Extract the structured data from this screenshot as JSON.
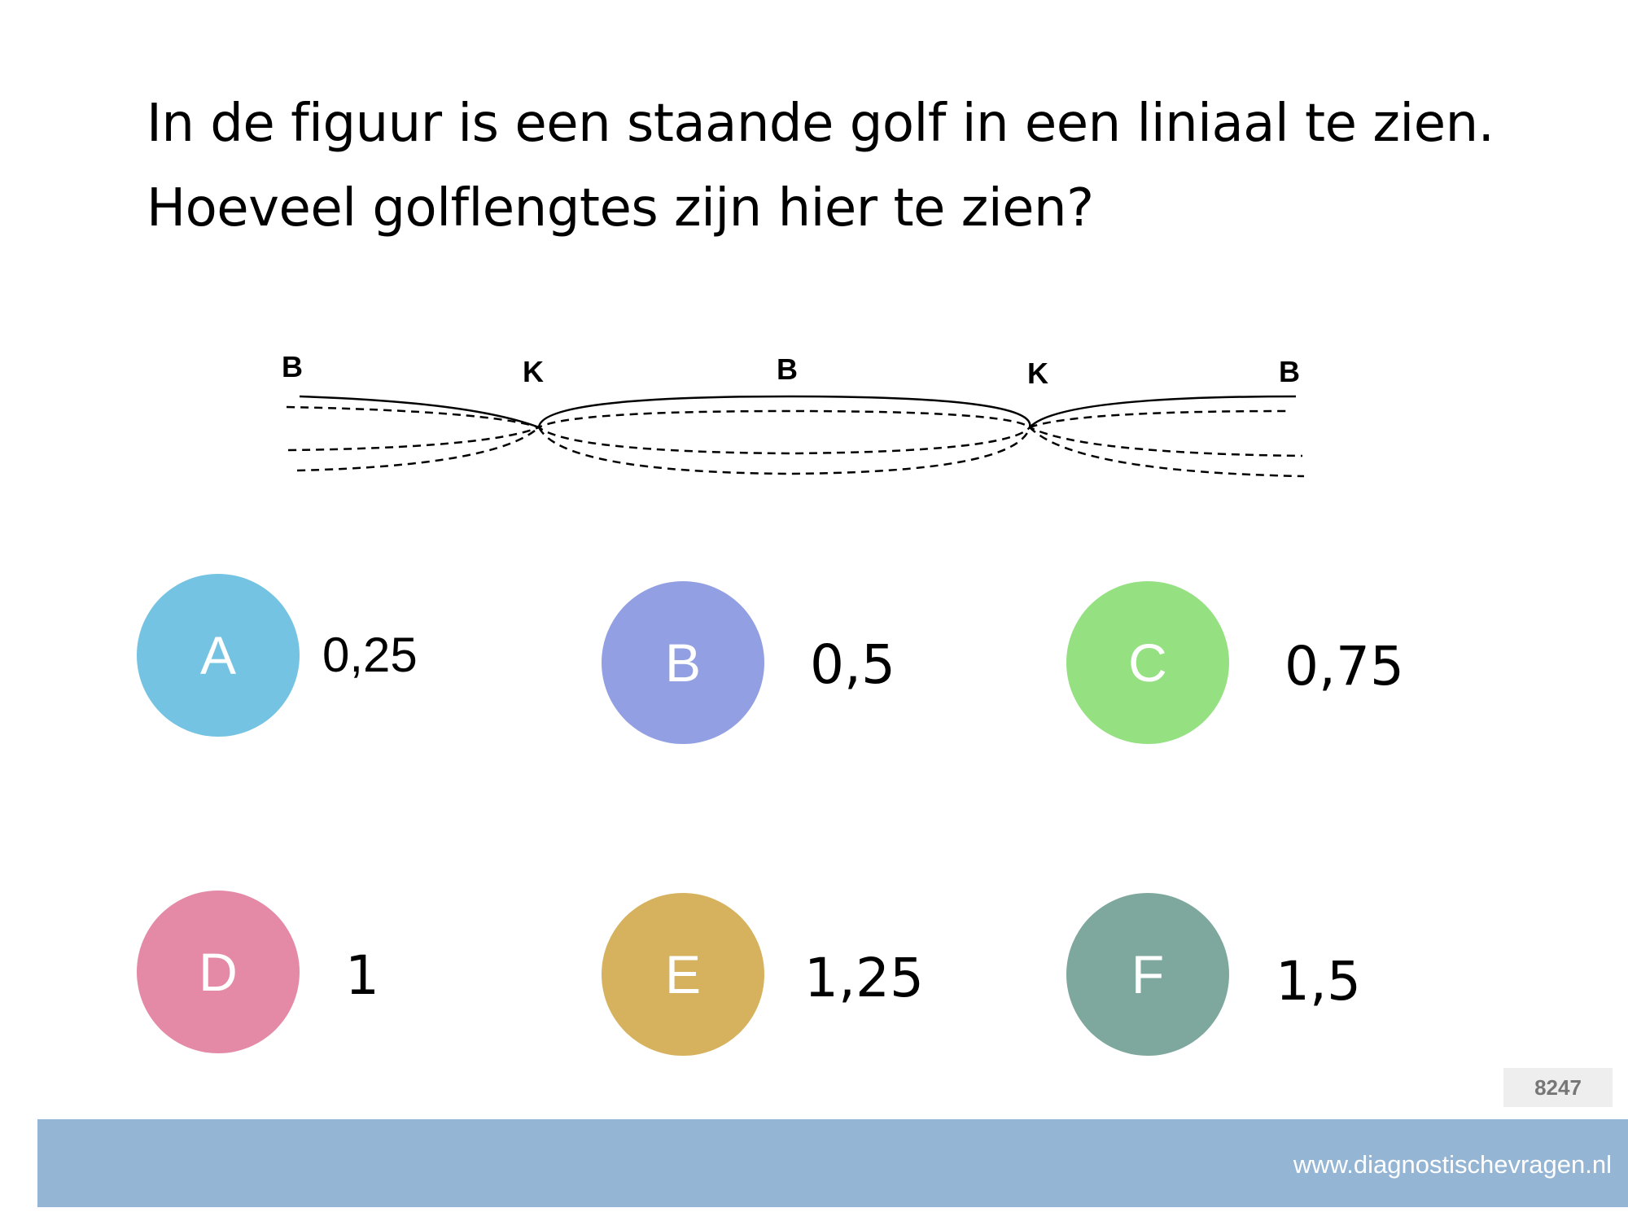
{
  "question": {
    "line1": "In de figuur is een staande golf in een liniaal te zien.",
    "line2": "Hoeveel golflengtes zijn hier te zien?"
  },
  "figure": {
    "labels": [
      "B",
      "K",
      "B",
      "K",
      "B"
    ]
  },
  "options": [
    {
      "letter": "A",
      "value": "0,25",
      "color": "#74c3e2"
    },
    {
      "letter": "B",
      "value": "0,5",
      "color": "#929fe2"
    },
    {
      "letter": "C",
      "value": "0,75",
      "color": "#95e081"
    },
    {
      "letter": "D",
      "value": "1",
      "color": "#e48aa7"
    },
    {
      "letter": "E",
      "value": "1,25",
      "color": "#d6b25e"
    },
    {
      "letter": "F",
      "value": "1,5",
      "color": "#7ea89e"
    }
  ],
  "badge": "8247",
  "footer": {
    "url": "www.diagnostischevragen.nl",
    "color": "#94b5d4"
  }
}
